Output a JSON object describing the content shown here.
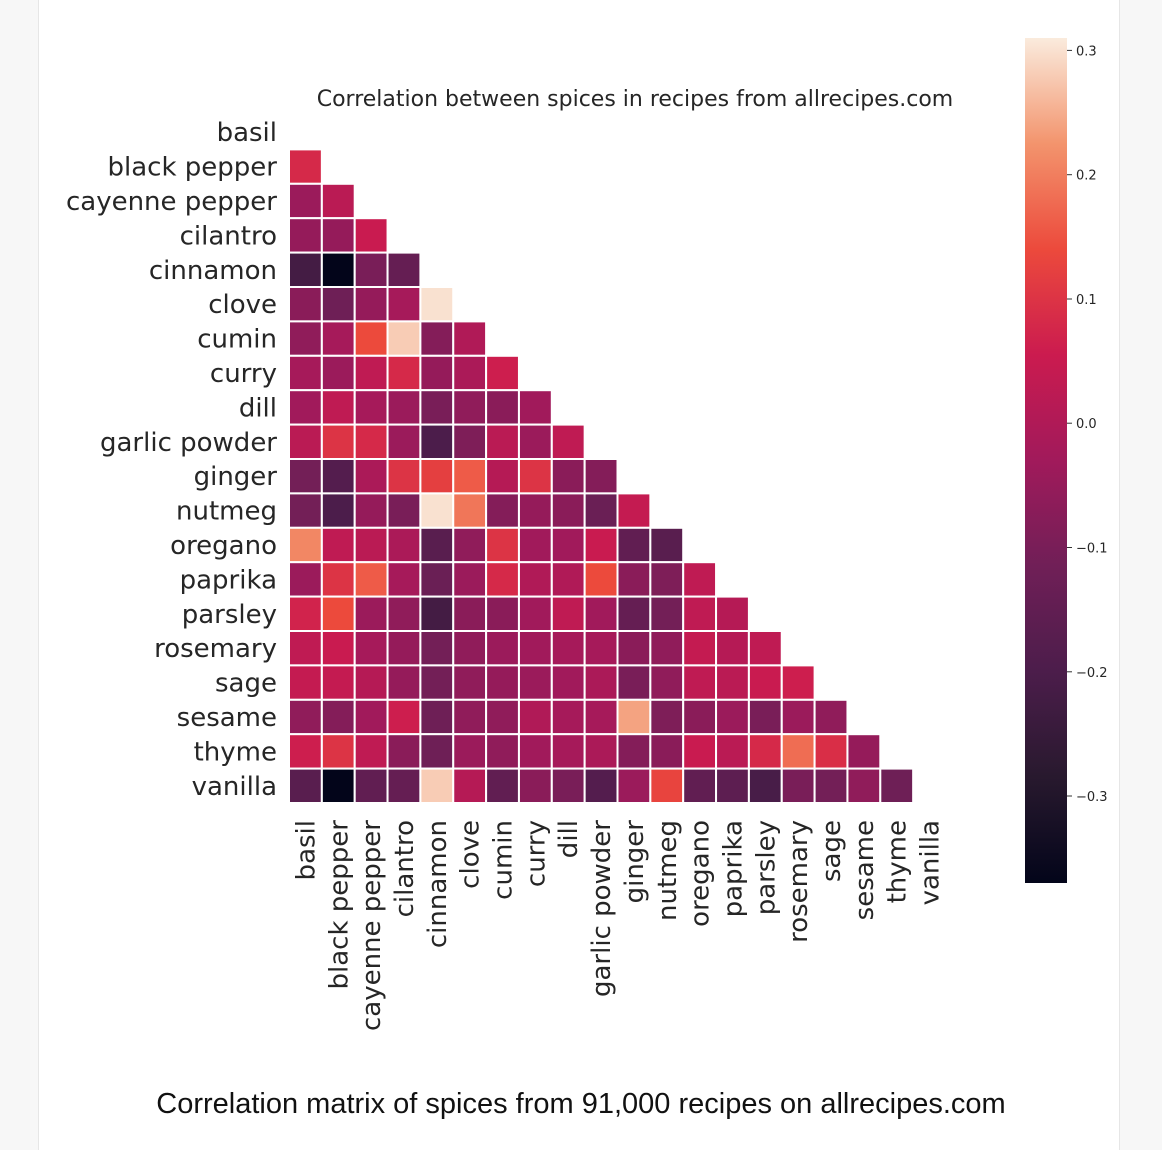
{
  "caption": "Correlation matrix of spices from 91,000 recipes on allrecipes.com",
  "chart_data": {
    "type": "heatmap",
    "title": "Correlation between spices in recipes from allrecipes.com",
    "xlabel": "",
    "ylabel": "",
    "mask": "upper-triangle-and-diagonal",
    "labels": [
      "basil",
      "black pepper",
      "cayenne pepper",
      "cilantro",
      "cinnamon",
      "clove",
      "cumin",
      "curry",
      "dill",
      "garlic powder",
      "ginger",
      "nutmeg",
      "oregano",
      "paprika",
      "parsley",
      "rosemary",
      "sage",
      "sesame",
      "thyme",
      "vanilla"
    ],
    "colorbar": {
      "range": [
        -0.37,
        0.31
      ],
      "ticks": [
        0.3,
        0.2,
        0.1,
        0.0,
        -0.1,
        -0.2,
        -0.3
      ],
      "tick_labels": [
        "0.3",
        "0.2",
        "0.1",
        "0.0",
        "−0.1",
        "−0.2",
        "−0.3"
      ],
      "colormap": "rocket"
    },
    "values": [
      [],
      [
        0.08
      ],
      [
        -0.04,
        0.02
      ],
      [
        -0.05,
        -0.05,
        0.05
      ],
      [
        -0.22,
        -0.37,
        -0.1,
        -0.14
      ],
      [
        -0.07,
        -0.12,
        -0.05,
        -0.02,
        0.3
      ],
      [
        -0.06,
        -0.02,
        0.14,
        0.28,
        -0.08,
        0.0
      ],
      [
        -0.02,
        -0.04,
        0.03,
        0.08,
        -0.05,
        -0.01,
        0.06
      ],
      [
        -0.03,
        0.03,
        -0.02,
        -0.04,
        -0.1,
        -0.06,
        -0.07,
        -0.03
      ],
      [
        0.02,
        0.1,
        0.08,
        -0.04,
        -0.2,
        -0.09,
        0.02,
        -0.04,
        0.03
      ],
      [
        -0.11,
        -0.18,
        -0.01,
        0.1,
        0.12,
        0.16,
        0.01,
        0.1,
        -0.07,
        -0.08
      ],
      [
        -0.11,
        -0.2,
        -0.05,
        -0.1,
        0.3,
        0.19,
        -0.08,
        -0.05,
        -0.07,
        -0.13,
        0.04
      ],
      [
        0.21,
        0.03,
        0.02,
        -0.01,
        -0.17,
        -0.06,
        0.1,
        -0.03,
        -0.03,
        0.05,
        -0.15,
        -0.17
      ],
      [
        -0.04,
        0.1,
        0.16,
        -0.02,
        -0.13,
        -0.04,
        0.08,
        0.0,
        0.0,
        0.14,
        -0.07,
        -0.09,
        0.03
      ],
      [
        0.07,
        0.14,
        -0.04,
        -0.06,
        -0.22,
        -0.07,
        -0.07,
        -0.03,
        0.03,
        -0.03,
        -0.14,
        -0.11,
        0.03,
        0.01
      ],
      [
        0.03,
        0.05,
        -0.02,
        -0.05,
        -0.11,
        -0.06,
        -0.04,
        -0.03,
        -0.02,
        -0.02,
        -0.07,
        -0.06,
        0.04,
        0.01,
        0.03
      ],
      [
        0.04,
        0.04,
        0.01,
        -0.05,
        -0.11,
        -0.06,
        -0.05,
        -0.04,
        -0.03,
        -0.01,
        -0.1,
        -0.06,
        0.03,
        0.02,
        0.05,
        0.06
      ],
      [
        -0.06,
        -0.08,
        -0.03,
        0.06,
        -0.12,
        -0.06,
        -0.06,
        0.0,
        -0.02,
        -0.02,
        0.24,
        -0.09,
        -0.07,
        -0.04,
        -0.1,
        -0.04,
        -0.06
      ],
      [
        0.06,
        0.1,
        0.03,
        -0.07,
        -0.12,
        -0.04,
        -0.06,
        -0.03,
        -0.02,
        -0.01,
        -0.08,
        -0.07,
        0.05,
        0.02,
        0.08,
        0.18,
        0.09,
        -0.05
      ],
      [
        -0.17,
        -0.37,
        -0.15,
        -0.14,
        0.28,
        0.01,
        -0.15,
        -0.07,
        -0.1,
        -0.18,
        -0.04,
        0.13,
        -0.15,
        -0.16,
        -0.21,
        -0.1,
        -0.11,
        -0.06,
        -0.12
      ]
    ]
  }
}
